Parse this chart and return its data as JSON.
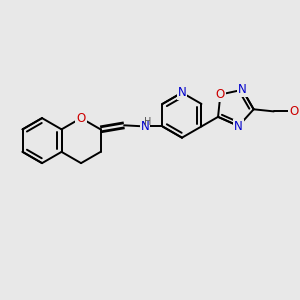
{
  "bg": "#e8e8e8",
  "bond_color": "#000000",
  "bw": 1.4,
  "atom_colors": {
    "N": "#0000cc",
    "O": "#cc0000",
    "H": "#555555"
  },
  "fs": 8.5,
  "s": 0.072
}
